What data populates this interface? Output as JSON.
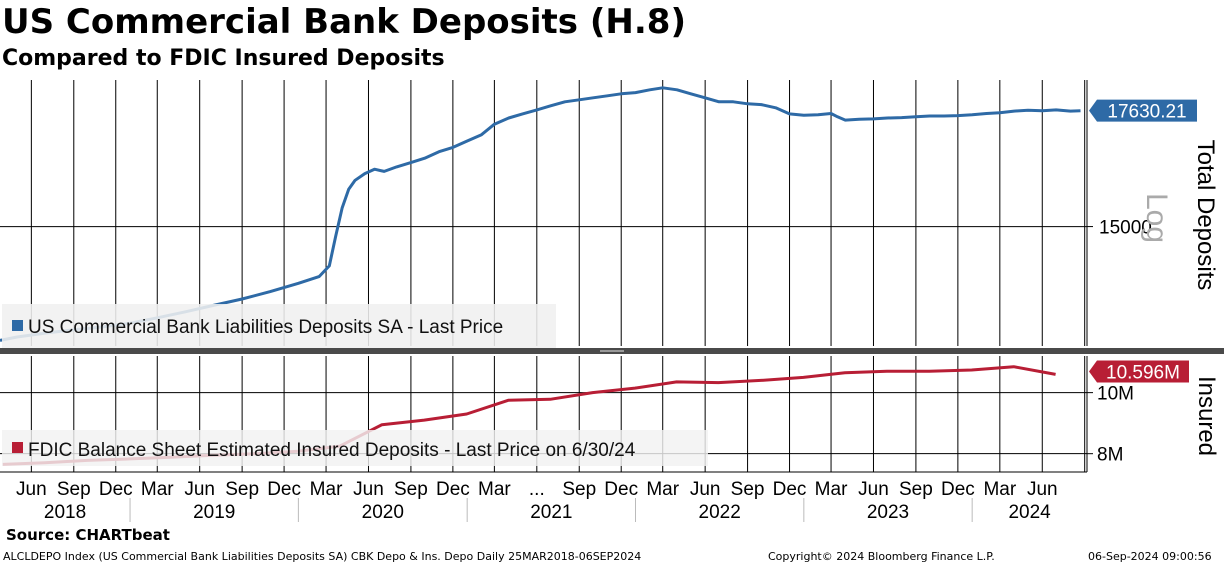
{
  "title": "US Commercial Bank Deposits (H.8)",
  "subtitle": "Compared to FDIC Insured Deposits",
  "source": "Source: CHARTbeat",
  "footer": {
    "left": "ALCLDEPO Index (US Commercial Bank Liabilities Deposits SA) CBK Depo & Ins. Depo  Daily 25MAR2018-06SEP2024",
    "center": "Copyright© 2024 Bloomberg Finance L.P.",
    "right": "06-Sep-2024 09:00:56"
  },
  "colors": {
    "deposits": "#2e6aa6",
    "insured": "#b81e35",
    "insured_faded": "#e58a98"
  },
  "chart_data": [
    {
      "type": "line",
      "panel": "top",
      "ylabel": "Total Deposits",
      "scale_label": "Log",
      "log_scale": true,
      "ylim": [
        12700,
        18400
      ],
      "yticks": [
        15000
      ],
      "ytick_labels": [
        "15000"
      ],
      "last_value_label": "17630.21",
      "legend": "US Commercial Bank Liabilities Deposits SA - Last Price",
      "legend_position": "bottom-left",
      "grid": true,
      "series": [
        {
          "name": "US Commercial Bank Liabilities Deposits SA - Last Price",
          "x": [
            "2018-03-25",
            "2018-05-01",
            "2018-07-01",
            "2018-09-01",
            "2018-11-01",
            "2019-01-01",
            "2019-03-01",
            "2019-05-01",
            "2019-07-01",
            "2019-09-01",
            "2019-11-01",
            "2020-01-01",
            "2020-02-15",
            "2020-03-08",
            "2020-03-22",
            "2020-04-05",
            "2020-04-19",
            "2020-05-03",
            "2020-05-24",
            "2020-06-14",
            "2020-07-05",
            "2020-08-01",
            "2020-09-01",
            "2020-10-01",
            "2020-11-01",
            "2020-12-01",
            "2021-01-01",
            "2021-02-01",
            "2021-03-01",
            "2021-04-01",
            "2021-05-01",
            "2021-06-01",
            "2021-07-01",
            "2021-08-01",
            "2021-09-01",
            "2021-10-01",
            "2021-11-01",
            "2021-12-01",
            "2022-01-01",
            "2022-02-01",
            "2022-03-01",
            "2022-04-01",
            "2022-05-01",
            "2022-06-01",
            "2022-07-01",
            "2022-08-01",
            "2022-09-01",
            "2022-10-01",
            "2022-11-01",
            "2022-12-01",
            "2023-01-01",
            "2023-02-01",
            "2023-03-01",
            "2023-03-15",
            "2023-04-01",
            "2023-05-01",
            "2023-06-01",
            "2023-07-01",
            "2023-08-01",
            "2023-09-01",
            "2023-10-01",
            "2023-11-01",
            "2023-12-01",
            "2024-01-01",
            "2024-02-01",
            "2024-03-01",
            "2024-04-01",
            "2024-05-01",
            "2024-06-01",
            "2024-07-01",
            "2024-08-01",
            "2024-08-23"
          ],
          "values": [
            12800,
            12860,
            12930,
            12990,
            13040,
            13110,
            13210,
            13320,
            13440,
            13560,
            13700,
            13860,
            13990,
            14200,
            14800,
            15400,
            15800,
            16000,
            16150,
            16250,
            16200,
            16300,
            16400,
            16500,
            16650,
            16750,
            16900,
            17050,
            17300,
            17450,
            17550,
            17650,
            17750,
            17850,
            17900,
            17950,
            18000,
            18050,
            18080,
            18150,
            18200,
            18150,
            18050,
            17950,
            17850,
            17850,
            17800,
            17780,
            17700,
            17550,
            17520,
            17530,
            17560,
            17480,
            17400,
            17420,
            17430,
            17450,
            17460,
            17480,
            17500,
            17500,
            17510,
            17530,
            17560,
            17580,
            17620,
            17640,
            17630,
            17650,
            17620,
            17630.21
          ]
        }
      ]
    },
    {
      "type": "line",
      "panel": "bottom",
      "ylabel": "Insured",
      "ylim": [
        7400000,
        11200000
      ],
      "yticks": [
        8000000,
        10000000
      ],
      "ytick_labels": [
        "8M",
        "10M"
      ],
      "last_value_label": "10.596M",
      "legend": "FDIC Balance Sheet Estimated Insured Deposits - Last Price on 6/30/24",
      "legend_position": "bottom-left",
      "grid": true,
      "series": [
        {
          "name": "FDIC Balance Sheet Estimated Insured Deposits - Last Price on 6/30/24",
          "x": [
            "2018-03-31",
            "2018-06-30",
            "2018-09-30",
            "2018-12-31",
            "2019-03-31",
            "2019-06-30",
            "2019-09-30",
            "2019-12-31",
            "2020-03-31",
            "2020-06-30",
            "2020-09-30",
            "2020-12-31",
            "2021-03-31",
            "2021-06-30",
            "2021-09-30",
            "2021-12-31",
            "2022-03-31",
            "2022-06-30",
            "2022-09-30",
            "2022-12-31",
            "2023-03-31",
            "2023-06-30",
            "2023-09-30",
            "2023-12-31",
            "2024-03-31",
            "2024-06-30"
          ],
          "values": [
            7650000,
            7700000,
            7780000,
            7830000,
            7880000,
            7950000,
            8000000,
            8080000,
            8250000,
            8950000,
            9100000,
            9300000,
            9750000,
            9780000,
            10000000,
            10150000,
            10350000,
            10330000,
            10400000,
            10500000,
            10650000,
            10700000,
            10700000,
            10740000,
            10850000,
            10596000
          ]
        }
      ]
    }
  ],
  "x_axis": {
    "month_ticks": [
      "Jun",
      "Sep",
      "Dec",
      "Mar",
      "Jun",
      "Sep",
      "Dec",
      "Mar",
      "Jun",
      "Sep",
      "Dec",
      "Mar",
      "...",
      "Sep",
      "Dec",
      "Mar",
      "Jun",
      "Sep",
      "Dec",
      "Mar",
      "Jun",
      "Sep",
      "Dec",
      "Mar",
      "Jun"
    ],
    "year_labels": [
      "2018",
      "2019",
      "2020",
      "2021",
      "2022",
      "2023",
      "2024"
    ]
  }
}
